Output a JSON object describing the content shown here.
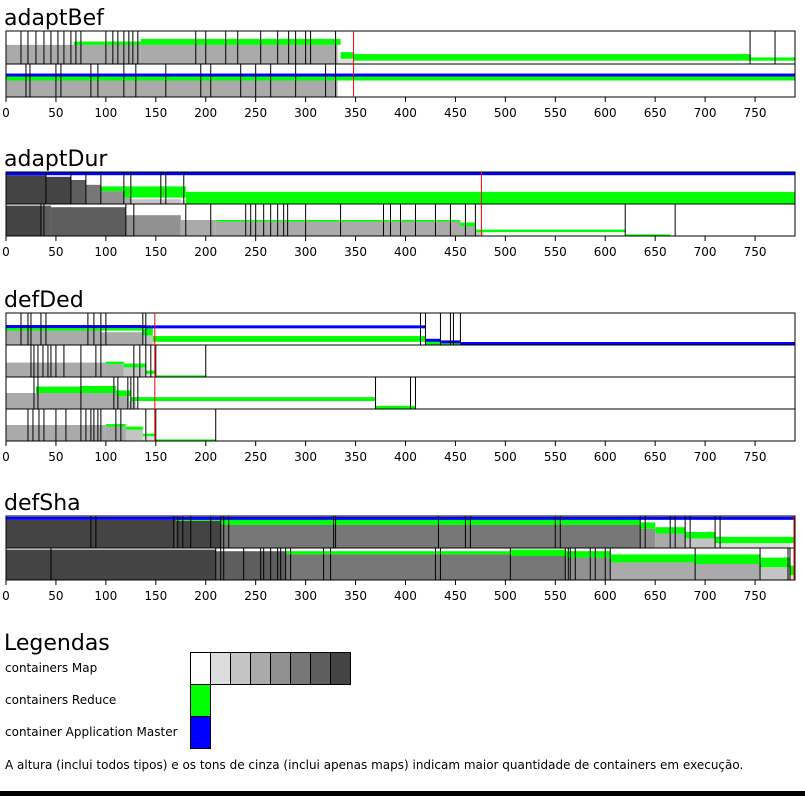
{
  "chart_data": {
    "type": "timeline",
    "x_range": [
      0,
      790
    ],
    "x_ticks": [
      0,
      50,
      100,
      150,
      200,
      250,
      300,
      350,
      400,
      450,
      500,
      550,
      600,
      650,
      700,
      750
    ],
    "colors": {
      "map_shades": [
        "#ffffff",
        "#dddddd",
        "#c4c4c4",
        "#aaaaaa",
        "#909090",
        "#777777",
        "#5e5e5e",
        "#444444"
      ],
      "reduce": "#00ff00",
      "application_master": "#0000ff",
      "marker": "#ff0000"
    },
    "panels": [
      {
        "title": "adaptBef",
        "marker": 348,
        "nodes": [
          {
            "map_steps": [
              [
                0,
                0.58,
                3
              ],
              [
                68,
                0.58,
                3
              ],
              [
                135,
                0.58,
                3
              ],
              [
                330,
                0.58,
                3
              ],
              [
                332,
                0.16,
                1
              ],
              [
                348,
                0.1,
                0
              ]
            ],
            "reduce_steps": [
              [
                68,
                0.1
              ],
              [
                135,
                0.18
              ],
              [
                335,
                0.2
              ],
              [
                348,
                0.2
              ],
              [
                745,
                0.1
              ],
              [
                790,
                0
              ]
            ],
            "am_steps": [],
            "events": [
              15,
              22,
              30,
              38,
              45,
              52,
              58,
              65,
              70,
              75,
              100,
              107,
              112,
              118,
              123,
              127,
              132,
              190,
              200,
              220,
              232,
              255,
              272,
              283,
              290,
              300,
              305,
              330,
              745,
              770
            ]
          },
          {
            "map_steps": [
              [
                0,
                0.5,
                3
              ],
              [
                330,
                0.5,
                3
              ],
              [
                332,
                0,
                0
              ]
            ],
            "reduce_steps": [
              [
                0,
                0.12
              ],
              [
                790,
                0.12
              ]
            ],
            "am_steps": [
              [
                0,
                0.1
              ],
              [
                790,
                0.1
              ]
            ],
            "events": [
              20,
              24,
              50,
              55,
              85,
              92,
              118,
              130,
              160,
              195,
              205,
              235,
              250,
              265,
              290,
              320,
              330
            ]
          }
        ]
      },
      {
        "title": "adaptDur",
        "marker": 476,
        "nodes": [
          {
            "map_steps": [
              [
                0,
                0.9,
                7
              ],
              [
                40,
                0.85,
                7
              ],
              [
                65,
                0.75,
                6
              ],
              [
                80,
                0.6,
                5
              ],
              [
                95,
                0.4,
                4
              ],
              [
                118,
                0.2,
                3
              ],
              [
                125,
                0.15,
                2
              ],
              [
                175,
                0.12,
                1
              ],
              [
                180,
                0,
                0
              ]
            ],
            "reduce_steps": [
              [
                95,
                0.15
              ],
              [
                118,
                0.35
              ],
              [
                180,
                0.38
              ],
              [
                790,
                0.38
              ]
            ],
            "am_steps": [
              [
                0,
                0.12
              ],
              [
                790,
                0.12
              ]
            ],
            "events": [
              40,
              65,
              80,
              95,
              118,
              125,
              155,
              160,
              178
            ]
          },
          {
            "map_steps": [
              [
                0,
                0.95,
                7
              ],
              [
                36,
                0.95,
                6
              ],
              [
                45,
                0.9,
                6
              ],
              [
                120,
                0.65,
                4
              ],
              [
                175,
                0.5,
                3
              ],
              [
                210,
                0.45,
                3
              ],
              [
                455,
                0.3,
                3
              ],
              [
                470,
                0.12,
                2
              ],
              [
                478,
                0,
                0
              ]
            ],
            "reduce_steps": [
              [
                210,
                0.05
              ],
              [
                455,
                0.12
              ],
              [
                470,
                0.08
              ],
              [
                620,
                0.05
              ],
              [
                665,
                0
              ]
            ],
            "am_steps": [],
            "events": [
              35,
              38,
              120,
              128,
              180,
              205,
              240,
              245,
              250,
              258,
              265,
              272,
              278,
              282,
              300,
              335,
              378,
              385,
              395,
              410,
              430,
              445,
              460,
              470,
              620,
              670
            ]
          }
        ]
      },
      {
        "title": "defDed",
        "marker": 149,
        "nodes": [
          {
            "map_steps": [
              [
                0,
                0.45,
                3
              ],
              [
                95,
                0.4,
                3
              ],
              [
                137,
                0.3,
                2
              ],
              [
                147,
                0.1,
                1
              ],
              [
                148,
                0,
                0
              ]
            ],
            "reduce_steps": [
              [
                0,
                0.08
              ],
              [
                137,
                0.22
              ],
              [
                147,
                0.18
              ],
              [
                420,
                0.1
              ],
              [
                435,
                0.05
              ],
              [
                455,
                0
              ]
            ],
            "am_steps": [
              [
                0,
                0.1
              ],
              [
                140,
                0.1
              ],
              [
                146,
                0.12
              ],
              [
                420,
                0.1
              ],
              [
                435,
                0.05
              ],
              [
                455,
                0.05
              ]
            ],
            "events": [
              15,
              22,
              25,
              35,
              40,
              82,
              88,
              95,
              100,
              137,
              140,
              415,
              420,
              435,
              445,
              448,
              455
            ]
          },
          {
            "map_steps": [
              [
                0,
                0.45,
                3
              ],
              [
                100,
                0.4,
                3
              ],
              [
                118,
                0.3,
                2
              ],
              [
                140,
                0.1,
                1
              ],
              [
                147,
                0,
                0
              ]
            ],
            "reduce_steps": [
              [
                100,
                0.08
              ],
              [
                118,
                0.12
              ],
              [
                140,
                0.1
              ],
              [
                150,
                0.05
              ],
              [
                200,
                0
              ]
            ],
            "am_steps": [],
            "events": [
              25,
              28,
              32,
              37,
              42,
              45,
              50,
              58,
              75,
              90,
              95,
              128,
              134,
              140,
              145,
              150,
              200
            ]
          },
          {
            "map_steps": [
              [
                0,
                0.5,
                3
              ],
              [
                110,
                0.4,
                3
              ],
              [
                123,
                0.25,
                2
              ],
              [
                130,
                0.1,
                1
              ],
              [
                132,
                0,
                0
              ]
            ],
            "reduce_steps": [
              [
                30,
                0.2
              ],
              [
                75,
                0.22
              ],
              [
                110,
                0.18
              ],
              [
                125,
                0.12
              ],
              [
                370,
                0.1
              ],
              [
                410,
                0
              ]
            ],
            "am_steps": [],
            "events": [
              28,
              32,
              75,
              108,
              112,
              122,
              125,
              128,
              132,
              370,
              405,
              410
            ]
          },
          {
            "map_steps": [
              [
                0,
                0.5,
                3
              ],
              [
                100,
                0.45,
                3
              ],
              [
                120,
                0.35,
                2
              ],
              [
                137,
                0.15,
                1
              ],
              [
                148,
                0,
                0
              ]
            ],
            "reduce_steps": [
              [
                100,
                0.08
              ],
              [
                120,
                0.1
              ],
              [
                137,
                0.08
              ],
              [
                150,
                0.05
              ],
              [
                210,
                0
              ]
            ],
            "am_steps": [],
            "events": [
              22,
              27,
              33,
              38,
              50,
              60,
              75,
              80,
              85,
              88,
              92,
              95,
              110,
              115,
              140,
              150,
              210
            ]
          }
        ]
      },
      {
        "title": "defSha",
        "marker": 789,
        "nodes": [
          {
            "map_steps": [
              [
                0,
                0.88,
                7
              ],
              [
                170,
                0.85,
                7
              ],
              [
                215,
                0.72,
                5
              ],
              [
                635,
                0.6,
                4
              ],
              [
                650,
                0.45,
                3
              ],
              [
                680,
                0.3,
                2
              ],
              [
                710,
                0.15,
                1
              ],
              [
                785,
                0.05,
                0
              ]
            ],
            "reduce_steps": [
              [
                170,
                0.05
              ],
              [
                215,
                0.2
              ],
              [
                635,
                0.2
              ],
              [
                650,
                0.2
              ],
              [
                680,
                0.2
              ],
              [
                710,
                0.2
              ],
              [
                790,
                0.15
              ]
            ],
            "am_steps": [
              [
                0,
                0.1
              ],
              [
                790,
                0.1
              ]
            ],
            "events": [
              85,
              90,
              168,
              172,
              177,
              185,
              205,
              215,
              218,
              223,
              328,
              330,
              433,
              460,
              465,
              550,
              555,
              635,
              640,
              665,
              670,
              680,
              685,
              710,
              715,
              789
            ]
          },
          {
            "map_steps": [
              [
                0,
                0.95,
                7
              ],
              [
                45,
                0.95,
                7
              ],
              [
                210,
                0.9,
                6
              ],
              [
                280,
                0.8,
                5
              ],
              [
                505,
                0.75,
                5
              ],
              [
                560,
                0.7,
                4
              ],
              [
                605,
                0.55,
                3
              ],
              [
                690,
                0.5,
                3
              ],
              [
                755,
                0.4,
                2
              ],
              [
                785,
                0.15,
                1
              ]
            ],
            "reduce_steps": [
              [
                280,
                0.1
              ],
              [
                505,
                0.2
              ],
              [
                560,
                0.2
              ],
              [
                605,
                0.25
              ],
              [
                690,
                0.3
              ],
              [
                755,
                0.3
              ],
              [
                785,
                0.3
              ],
              [
                790,
                0.1
              ]
            ],
            "am_steps": [],
            "events": [
              45,
              210,
              215,
              218,
              238,
              255,
              258,
              265,
              272,
              275,
              280,
              285,
              318,
              325,
              430,
              435,
              505,
              560,
              563,
              565,
              570,
              585,
              590,
              600,
              605,
              690,
              755,
              783,
              785
            ]
          }
        ]
      }
    ],
    "legend": {
      "title": "Legendas",
      "items": [
        {
          "label": "containers Map",
          "colors": [
            "#ffffff",
            "#dddddd",
            "#c4c4c4",
            "#aaaaaa",
            "#909090",
            "#777777",
            "#5e5e5e",
            "#444444"
          ]
        },
        {
          "label": "containers Reduce",
          "colors": [
            "#00ff00"
          ]
        },
        {
          "label": "container Application Master",
          "colors": [
            "#0000ff"
          ]
        }
      ]
    },
    "footnote": "A altura (inclui todos tipos) e os tons de cinza (inclui apenas maps) indicam maior quantidade de containers em execução."
  }
}
